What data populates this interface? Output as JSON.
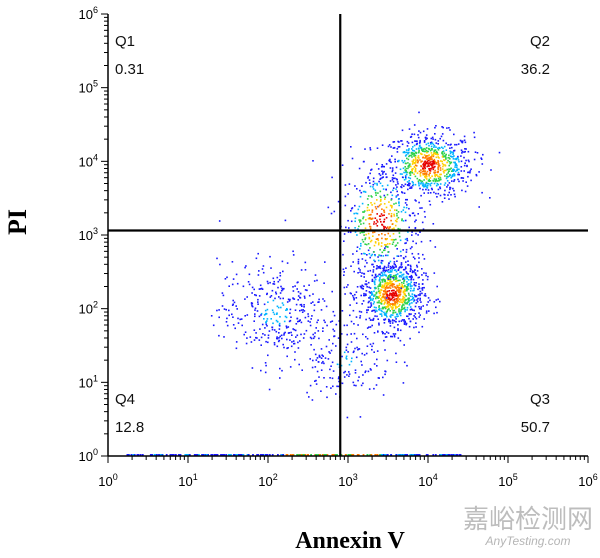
{
  "chart_data": {
    "type": "scatter",
    "subtype": "flow-cytometry-density-dot-plot",
    "xlabel": "Annexin V",
    "ylabel": "PI",
    "x_scale": "log",
    "y_scale": "log",
    "xlim": [
      1,
      1000000
    ],
    "ylim": [
      1,
      1000000
    ],
    "x_ticks": [
      {
        "base": "10",
        "exp": "0",
        "value": 1
      },
      {
        "base": "10",
        "exp": "1",
        "value": 10
      },
      {
        "base": "10",
        "exp": "2",
        "value": 100
      },
      {
        "base": "10",
        "exp": "3",
        "value": 1000
      },
      {
        "base": "10",
        "exp": "4",
        "value": 10000
      },
      {
        "base": "10",
        "exp": "5",
        "value": 100000
      },
      {
        "base": "10",
        "exp": "6",
        "value": 1000000
      }
    ],
    "y_ticks": [
      {
        "base": "10",
        "exp": "0",
        "value": 1
      },
      {
        "base": "10",
        "exp": "1",
        "value": 10
      },
      {
        "base": "10",
        "exp": "2",
        "value": 100
      },
      {
        "base": "10",
        "exp": "3",
        "value": 1000
      },
      {
        "base": "10",
        "exp": "4",
        "value": 10000
      },
      {
        "base": "10",
        "exp": "5",
        "value": 100000
      },
      {
        "base": "10",
        "exp": "6",
        "value": 1000000
      }
    ],
    "gate": {
      "x": 800,
      "y": 1150
    },
    "quadrants": [
      {
        "name": "Q1",
        "value": "0.31",
        "corner": "top-left"
      },
      {
        "name": "Q2",
        "value": "36.2",
        "corner": "top-right"
      },
      {
        "name": "Q3",
        "value": "50.7",
        "corner": "bottom-right"
      },
      {
        "name": "Q4",
        "value": "12.8",
        "corner": "bottom-left"
      }
    ],
    "populations": [
      {
        "center": [
          10000,
          9000
        ],
        "spread_log": [
          0.28,
          0.22
        ],
        "weight": 0.3
      },
      {
        "center": [
          3500,
          160
        ],
        "spread_log": [
          0.2,
          0.24
        ],
        "weight": 0.34
      },
      {
        "center": [
          2500,
          1500
        ],
        "spread_log": [
          0.25,
          0.4
        ],
        "weight": 0.16
      },
      {
        "center": [
          120,
          90
        ],
        "spread_log": [
          0.35,
          0.35
        ],
        "weight": 0.14
      },
      {
        "center": [
          900,
          20
        ],
        "spread_log": [
          0.3,
          0.25
        ],
        "weight": 0.06
      }
    ],
    "density_colors": [
      "#1a1aff",
      "#00b4ff",
      "#2fd24a",
      "#ffd000",
      "#ff7a00",
      "#e60000"
    ],
    "grid": false
  },
  "watermark": {
    "line1": "嘉峪检测网",
    "line2": "AnyTesting.com"
  }
}
